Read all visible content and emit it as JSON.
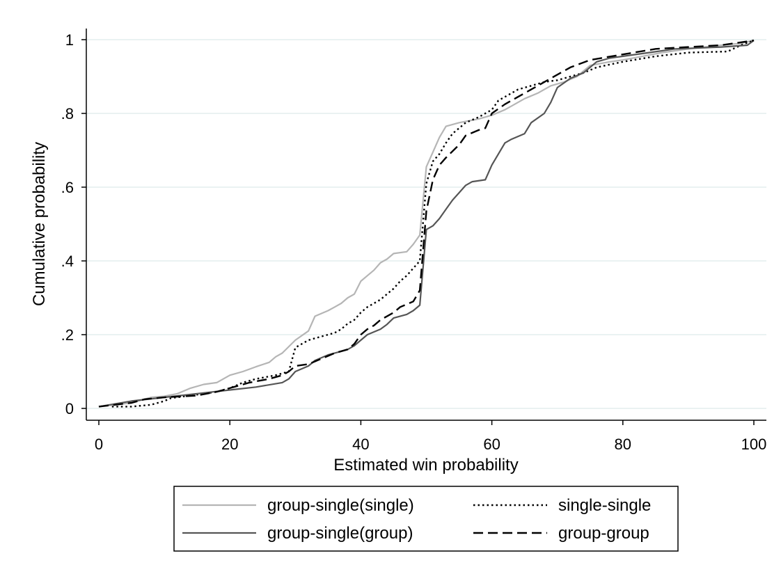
{
  "chart_data": {
    "type": "line",
    "xlabel": "Estimated win probability",
    "ylabel": "Cumulative probability",
    "xlim": [
      0,
      100
    ],
    "ylim": [
      0,
      1
    ],
    "x_ticks": [
      0,
      20,
      40,
      60,
      80,
      100
    ],
    "x_tick_labels": [
      "0",
      "20",
      "40",
      "60",
      "80",
      "100"
    ],
    "y_ticks": [
      0,
      0.2,
      0.4,
      0.6,
      0.8,
      1
    ],
    "y_tick_labels": [
      "0",
      ".2",
      ".4",
      ".6",
      ".8",
      "1"
    ],
    "grid": "horizontal",
    "legend_position": "bottom",
    "series": [
      {
        "name": "group-single(single)",
        "color": "#b5b5b5",
        "dash": "solid",
        "points": [
          [
            0,
            0.005
          ],
          [
            5,
            0.015
          ],
          [
            8,
            0.03
          ],
          [
            10,
            0.033
          ],
          [
            12,
            0.04
          ],
          [
            14,
            0.055
          ],
          [
            16,
            0.065
          ],
          [
            18,
            0.07
          ],
          [
            20,
            0.09
          ],
          [
            22,
            0.1
          ],
          [
            24,
            0.113
          ],
          [
            26,
            0.125
          ],
          [
            27,
            0.14
          ],
          [
            28,
            0.15
          ],
          [
            30,
            0.185
          ],
          [
            32,
            0.21
          ],
          [
            33,
            0.25
          ],
          [
            35,
            0.265
          ],
          [
            36,
            0.275
          ],
          [
            37,
            0.285
          ],
          [
            38,
            0.3
          ],
          [
            39,
            0.31
          ],
          [
            40,
            0.345
          ],
          [
            41,
            0.36
          ],
          [
            42,
            0.375
          ],
          [
            43,
            0.395
          ],
          [
            44,
            0.405
          ],
          [
            45,
            0.42
          ],
          [
            47,
            0.425
          ],
          [
            48,
            0.445
          ],
          [
            49,
            0.47
          ],
          [
            50,
            0.655
          ],
          [
            51,
            0.695
          ],
          [
            52,
            0.735
          ],
          [
            53,
            0.765
          ],
          [
            55,
            0.775
          ],
          [
            58,
            0.785
          ],
          [
            60,
            0.795
          ],
          [
            62,
            0.81
          ],
          [
            63,
            0.82
          ],
          [
            65,
            0.84
          ],
          [
            67,
            0.855
          ],
          [
            69,
            0.875
          ],
          [
            71,
            0.885
          ],
          [
            73,
            0.9
          ],
          [
            75,
            0.93
          ],
          [
            78,
            0.94
          ],
          [
            80,
            0.945
          ],
          [
            83,
            0.955
          ],
          [
            86,
            0.965
          ],
          [
            90,
            0.975
          ],
          [
            95,
            0.985
          ],
          [
            98,
            0.99
          ],
          [
            100,
            0.998
          ]
        ]
      },
      {
        "name": "single-single",
        "color": "#000000",
        "dash": "dotted",
        "points": [
          [
            2,
            0.005
          ],
          [
            5,
            0.005
          ],
          [
            8,
            0.01
          ],
          [
            10,
            0.02
          ],
          [
            11,
            0.028
          ],
          [
            14,
            0.035
          ],
          [
            18,
            0.045
          ],
          [
            20,
            0.055
          ],
          [
            22,
            0.07
          ],
          [
            24,
            0.08
          ],
          [
            27,
            0.09
          ],
          [
            29,
            0.1
          ],
          [
            30,
            0.165
          ],
          [
            32,
            0.185
          ],
          [
            34,
            0.195
          ],
          [
            36,
            0.205
          ],
          [
            37,
            0.215
          ],
          [
            38,
            0.23
          ],
          [
            39,
            0.24
          ],
          [
            40,
            0.26
          ],
          [
            41,
            0.275
          ],
          [
            42,
            0.285
          ],
          [
            43,
            0.295
          ],
          [
            44,
            0.31
          ],
          [
            45,
            0.325
          ],
          [
            46,
            0.345
          ],
          [
            47,
            0.36
          ],
          [
            48,
            0.38
          ],
          [
            49,
            0.4
          ],
          [
            50,
            0.61
          ],
          [
            51,
            0.67
          ],
          [
            52,
            0.69
          ],
          [
            53,
            0.72
          ],
          [
            54,
            0.745
          ],
          [
            56,
            0.775
          ],
          [
            58,
            0.79
          ],
          [
            60,
            0.81
          ],
          [
            61,
            0.835
          ],
          [
            63,
            0.855
          ],
          [
            64,
            0.865
          ],
          [
            66,
            0.875
          ],
          [
            68,
            0.885
          ],
          [
            70,
            0.89
          ],
          [
            72,
            0.9
          ],
          [
            74,
            0.91
          ],
          [
            76,
            0.925
          ],
          [
            80,
            0.94
          ],
          [
            85,
            0.955
          ],
          [
            90,
            0.965
          ],
          [
            96,
            0.968
          ],
          [
            98,
            0.985
          ],
          [
            100,
            0.998
          ]
        ]
      },
      {
        "name": "group-single(group)",
        "color": "#555555",
        "dash": "solid",
        "points": [
          [
            0,
            0.005
          ],
          [
            5,
            0.02
          ],
          [
            10,
            0.03
          ],
          [
            15,
            0.04
          ],
          [
            20,
            0.05
          ],
          [
            24,
            0.058
          ],
          [
            28,
            0.07
          ],
          [
            29,
            0.08
          ],
          [
            30,
            0.1
          ],
          [
            32,
            0.115
          ],
          [
            33,
            0.13
          ],
          [
            35,
            0.145
          ],
          [
            37,
            0.155
          ],
          [
            38,
            0.16
          ],
          [
            39,
            0.17
          ],
          [
            40,
            0.185
          ],
          [
            41,
            0.2
          ],
          [
            43,
            0.215
          ],
          [
            44,
            0.228
          ],
          [
            45,
            0.245
          ],
          [
            47,
            0.255
          ],
          [
            48,
            0.265
          ],
          [
            49,
            0.28
          ],
          [
            50,
            0.485
          ],
          [
            51,
            0.495
          ],
          [
            52,
            0.515
          ],
          [
            53,
            0.54
          ],
          [
            54,
            0.565
          ],
          [
            55,
            0.585
          ],
          [
            56,
            0.605
          ],
          [
            57,
            0.615
          ],
          [
            59,
            0.62
          ],
          [
            60,
            0.66
          ],
          [
            61,
            0.69
          ],
          [
            62,
            0.72
          ],
          [
            63,
            0.73
          ],
          [
            65,
            0.745
          ],
          [
            66,
            0.775
          ],
          [
            68,
            0.8
          ],
          [
            69,
            0.83
          ],
          [
            70,
            0.87
          ],
          [
            72,
            0.895
          ],
          [
            74,
            0.91
          ],
          [
            76,
            0.94
          ],
          [
            78,
            0.95
          ],
          [
            80,
            0.955
          ],
          [
            84,
            0.965
          ],
          [
            88,
            0.975
          ],
          [
            95,
            0.98
          ],
          [
            99,
            0.985
          ],
          [
            100,
            0.998
          ]
        ]
      },
      {
        "name": "group-group",
        "color": "#000000",
        "dash": "dashed",
        "points": [
          [
            0,
            0.005
          ],
          [
            5,
            0.015
          ],
          [
            7,
            0.025
          ],
          [
            10,
            0.03
          ],
          [
            15,
            0.035
          ],
          [
            18,
            0.045
          ],
          [
            21,
            0.06
          ],
          [
            23,
            0.07
          ],
          [
            26,
            0.08
          ],
          [
            28,
            0.09
          ],
          [
            29,
            0.1
          ],
          [
            30,
            0.115
          ],
          [
            32,
            0.12
          ],
          [
            34,
            0.135
          ],
          [
            36,
            0.15
          ],
          [
            38,
            0.16
          ],
          [
            39,
            0.175
          ],
          [
            40,
            0.2
          ],
          [
            41,
            0.215
          ],
          [
            42,
            0.225
          ],
          [
            43,
            0.24
          ],
          [
            45,
            0.26
          ],
          [
            46,
            0.275
          ],
          [
            48,
            0.29
          ],
          [
            49,
            0.32
          ],
          [
            50,
            0.535
          ],
          [
            51,
            0.62
          ],
          [
            52,
            0.66
          ],
          [
            53,
            0.68
          ],
          [
            55,
            0.715
          ],
          [
            56,
            0.74
          ],
          [
            58,
            0.755
          ],
          [
            59,
            0.76
          ],
          [
            60,
            0.8
          ],
          [
            62,
            0.825
          ],
          [
            64,
            0.845
          ],
          [
            66,
            0.865
          ],
          [
            68,
            0.885
          ],
          [
            70,
            0.905
          ],
          [
            72,
            0.925
          ],
          [
            75,
            0.945
          ],
          [
            80,
            0.96
          ],
          [
            85,
            0.975
          ],
          [
            90,
            0.98
          ],
          [
            95,
            0.985
          ],
          [
            100,
            0.998
          ]
        ]
      }
    ],
    "legend": {
      "items": [
        {
          "label": "group-single(single)",
          "series": 0
        },
        {
          "label": "single-single",
          "series": 1
        },
        {
          "label": "group-single(group)",
          "series": 2
        },
        {
          "label": "group-group",
          "series": 3
        }
      ]
    }
  }
}
